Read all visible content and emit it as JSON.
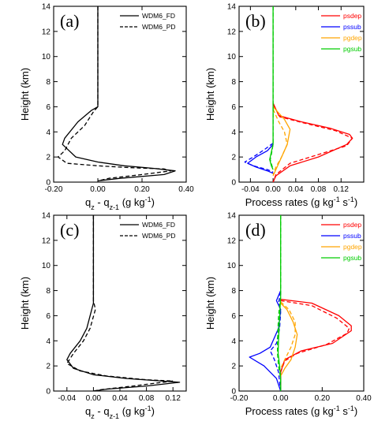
{
  "chart_data": [
    {
      "panel": "(a)",
      "type": "line",
      "xlabel_parts": {
        "base": "q",
        "sub1": "z",
        "minus": " - q",
        "sub2": "z-1",
        "unit": " (g kg",
        "sup": "-1",
        "close": ")"
      },
      "ylabel": "Height (km)",
      "xlim": [
        -0.2,
        0.4
      ],
      "ylim": [
        0,
        14
      ],
      "xticks": [
        -0.2,
        0.0,
        0.2,
        0.4
      ],
      "xtick_labels": [
        "-0.20",
        "0.00",
        "0.20",
        "0.40"
      ],
      "yticks": [
        0,
        2,
        4,
        6,
        8,
        10,
        12,
        14
      ],
      "legend_position": "top-right",
      "series": [
        {
          "name": "WDM6_FD",
          "color": "#000000",
          "dash": "solid",
          "points": [
            [
              0.0,
              14
            ],
            [
              0.0,
              6.0
            ],
            [
              -0.03,
              5.7
            ],
            [
              -0.09,
              4.8
            ],
            [
              -0.15,
              3.5
            ],
            [
              -0.16,
              3.0
            ],
            [
              -0.1,
              2.0
            ],
            [
              0.0,
              1.6
            ],
            [
              0.12,
              1.3
            ],
            [
              0.25,
              1.1
            ],
            [
              0.35,
              0.9
            ],
            [
              0.3,
              0.6
            ],
            [
              0.1,
              0.3
            ],
            [
              0.0,
              0.1
            ]
          ]
        },
        {
          "name": "WDM6_PD",
          "color": "#000000",
          "dash": "dashed",
          "points": [
            [
              0.0,
              14
            ],
            [
              0.0,
              6.0
            ],
            [
              -0.02,
              5.6
            ],
            [
              -0.06,
              4.5
            ],
            [
              -0.12,
              3.5
            ],
            [
              -0.15,
              2.5
            ],
            [
              -0.18,
              2.0
            ],
            [
              -0.14,
              1.5
            ],
            [
              0.0,
              1.3
            ],
            [
              0.15,
              1.15
            ],
            [
              0.3,
              1.05
            ],
            [
              0.33,
              0.9
            ],
            [
              0.2,
              0.6
            ],
            [
              0.05,
              0.3
            ],
            [
              0.0,
              0.1
            ]
          ]
        }
      ]
    },
    {
      "panel": "(b)",
      "type": "line",
      "xlabel_parts": {
        "base": "Process rates (g kg",
        "sup1": "-1",
        "mid": " s",
        "sup2": "-1",
        "close": ")"
      },
      "ylabel": "Height (km)",
      "xlim": [
        -0.06,
        0.16
      ],
      "ylim": [
        0,
        14
      ],
      "xticks": [
        -0.04,
        0.0,
        0.04,
        0.08,
        0.12
      ],
      "xtick_labels": [
        "-0.04",
        "0.00",
        "0.04",
        "0.08",
        "0.12"
      ],
      "yticks": [
        0,
        2,
        4,
        6,
        8,
        10,
        12,
        14
      ],
      "legend_position": "top-right",
      "series": [
        {
          "name": "psdep",
          "color": "#ff0000",
          "solid": [
            [
              0.0,
              6.3
            ],
            [
              0.01,
              5.3
            ],
            [
              0.05,
              4.8
            ],
            [
              0.1,
              4.3
            ],
            [
              0.135,
              3.8
            ],
            [
              0.14,
              3.5
            ],
            [
              0.13,
              3.0
            ],
            [
              0.08,
              2.0
            ],
            [
              0.03,
              1.3
            ],
            [
              0.005,
              0.5
            ],
            [
              0.0,
              0.0
            ]
          ],
          "dashed": [
            [
              0.0,
              6.2
            ],
            [
              0.012,
              5.2
            ],
            [
              0.055,
              4.7
            ],
            [
              0.11,
              4.1
            ],
            [
              0.14,
              3.5
            ],
            [
              0.13,
              2.9
            ],
            [
              0.08,
              2.2
            ],
            [
              0.03,
              1.5
            ],
            [
              0.005,
              0.6
            ],
            [
              0.0,
              0.0
            ]
          ]
        },
        {
          "name": "pssub",
          "color": "#0000ff",
          "solid": [
            [
              0.0,
              3.0
            ],
            [
              -0.01,
              2.5
            ],
            [
              -0.03,
              2.0
            ],
            [
              -0.045,
              1.5
            ],
            [
              -0.03,
              1.2
            ],
            [
              -0.01,
              0.9
            ],
            [
              0.0,
              0.7
            ]
          ],
          "dashed": [
            [
              0.0,
              3.1
            ],
            [
              -0.015,
              2.6
            ],
            [
              -0.035,
              2.0
            ],
            [
              -0.05,
              1.6
            ],
            [
              -0.035,
              1.3
            ],
            [
              -0.01,
              1.0
            ],
            [
              0.0,
              0.8
            ]
          ]
        },
        {
          "name": "pgdep",
          "color": "#ffa500",
          "solid": [
            [
              0.0,
              6.0
            ],
            [
              0.02,
              5.0
            ],
            [
              0.03,
              4.2
            ],
            [
              0.025,
              3.0
            ],
            [
              0.015,
              2.0
            ],
            [
              0.005,
              1.0
            ],
            [
              0.0,
              0.5
            ]
          ],
          "dashed": [
            [
              0.0,
              5.8
            ],
            [
              0.01,
              4.8
            ],
            [
              0.02,
              4.0
            ],
            [
              0.025,
              3.0
            ],
            [
              0.015,
              2.0
            ],
            [
              0.005,
              1.2
            ],
            [
              0.0,
              0.6
            ]
          ]
        },
        {
          "name": "pgsub",
          "color": "#00cc00",
          "solid": [
            [
              0.0,
              14
            ],
            [
              0.0,
              3.0
            ],
            [
              -0.004,
              2.2
            ],
            [
              -0.006,
              1.8
            ],
            [
              -0.003,
              1.3
            ],
            [
              0.0,
              1.0
            ]
          ],
          "dashed": [
            [
              0.0,
              14
            ],
            [
              0.0,
              3.0
            ],
            [
              -0.003,
              2.2
            ],
            [
              -0.005,
              1.8
            ],
            [
              -0.002,
              1.3
            ],
            [
              0.0,
              1.0
            ]
          ]
        }
      ]
    },
    {
      "panel": "(c)",
      "type": "line",
      "xlabel_parts": {
        "base": "q",
        "sub1": "z",
        "minus": " - q",
        "sub2": "z-1",
        "unit": " (g kg",
        "sup": "-1",
        "close": ")"
      },
      "ylabel": "Height (km)",
      "xlim": [
        -0.06,
        0.14
      ],
      "ylim": [
        0,
        14
      ],
      "xticks": [
        -0.04,
        0.0,
        0.04,
        0.08,
        0.12
      ],
      "xtick_labels": [
        "-0.04",
        "0.00",
        "0.04",
        "0.08",
        "0.12"
      ],
      "yticks": [
        0,
        2,
        4,
        6,
        8,
        10,
        12,
        14
      ],
      "legend_position": "top-right",
      "series": [
        {
          "name": "WDM6_FD",
          "color": "#000000",
          "dash": "solid",
          "points": [
            [
              0.0,
              14
            ],
            [
              0.0,
              7.0
            ],
            [
              -0.005,
              6.0
            ],
            [
              -0.01,
              5.0
            ],
            [
              -0.02,
              4.0
            ],
            [
              -0.035,
              3.0
            ],
            [
              -0.04,
              2.5
            ],
            [
              -0.03,
              1.8
            ],
            [
              0.0,
              1.3
            ],
            [
              0.05,
              1.0
            ],
            [
              0.13,
              0.7
            ],
            [
              0.08,
              0.4
            ],
            [
              0.02,
              0.15
            ],
            [
              0.0,
              0.0
            ]
          ]
        },
        {
          "name": "WDM6_PD",
          "color": "#000000",
          "dash": "dashed",
          "points": [
            [
              0.0,
              14
            ],
            [
              0.0,
              7.2
            ],
            [
              0.003,
              6.5
            ],
            [
              -0.005,
              5.0
            ],
            [
              -0.015,
              4.0
            ],
            [
              -0.03,
              3.0
            ],
            [
              -0.04,
              2.2
            ],
            [
              -0.02,
              1.6
            ],
            [
              0.02,
              1.2
            ],
            [
              0.08,
              0.9
            ],
            [
              0.12,
              0.8
            ],
            [
              0.06,
              0.4
            ],
            [
              0.01,
              0.1
            ],
            [
              0.0,
              0.0
            ]
          ]
        }
      ]
    },
    {
      "panel": "(d)",
      "type": "line",
      "xlabel_parts": {
        "base": "Process rates (g kg",
        "sup1": "-1",
        "mid": " s",
        "sup2": "-1",
        "close": ")"
      },
      "ylabel": "Height (km)",
      "xlim": [
        -0.2,
        0.4
      ],
      "ylim": [
        0,
        14
      ],
      "xticks": [
        -0.2,
        0.0,
        0.2,
        0.4
      ],
      "xtick_labels": [
        "-0.20",
        "0.00",
        "0.20",
        "0.40"
      ],
      "yticks": [
        0,
        2,
        4,
        6,
        8,
        10,
        12,
        14
      ],
      "legend_position": "top-right",
      "series": [
        {
          "name": "psdep",
          "color": "#ff0000",
          "solid": [
            [
              0.0,
              7.3
            ],
            [
              0.15,
              7.0
            ],
            [
              0.28,
              6.0
            ],
            [
              0.34,
              5.2
            ],
            [
              0.34,
              4.8
            ],
            [
              0.25,
              3.8
            ],
            [
              0.1,
              3.2
            ],
            [
              0.02,
              2.5
            ],
            [
              0.0,
              1.5
            ],
            [
              0.0,
              0.0
            ]
          ],
          "dashed": [
            [
              0.0,
              7.2
            ],
            [
              0.15,
              6.8
            ],
            [
              0.27,
              5.8
            ],
            [
              0.33,
              5.0
            ],
            [
              0.32,
              4.6
            ],
            [
              0.22,
              3.7
            ],
            [
              0.08,
              3.0
            ],
            [
              0.02,
              2.4
            ],
            [
              0.0,
              1.5
            ],
            [
              0.0,
              0.0
            ]
          ]
        },
        {
          "name": "pssub",
          "color": "#0000ff",
          "solid": [
            [
              0.0,
              8.0
            ],
            [
              -0.02,
              7.2
            ],
            [
              0.0,
              6.5
            ],
            [
              -0.01,
              5.0
            ],
            [
              -0.05,
              3.5
            ],
            [
              -0.1,
              3.0
            ],
            [
              -0.15,
              2.7
            ],
            [
              -0.08,
              2.0
            ],
            [
              -0.02,
              1.0
            ],
            [
              0.0,
              0.0
            ]
          ],
          "dashed": [
            [
              0.0,
              7.9
            ],
            [
              -0.01,
              7.0
            ],
            [
              0.0,
              6.3
            ],
            [
              -0.005,
              5.0
            ],
            [
              -0.02,
              3.8
            ],
            [
              -0.05,
              3.2
            ],
            [
              -0.03,
              2.5
            ],
            [
              -0.01,
              1.5
            ],
            [
              0.0,
              0.0
            ]
          ]
        },
        {
          "name": "pgdep",
          "color": "#ffa500",
          "solid": [
            [
              0.0,
              7.0
            ],
            [
              0.03,
              6.5
            ],
            [
              0.06,
              5.5
            ],
            [
              0.08,
              4.5
            ],
            [
              0.07,
              3.5
            ],
            [
              0.05,
              2.5
            ],
            [
              0.02,
              1.8
            ],
            [
              0.0,
              1.2
            ]
          ],
          "dashed": [
            [
              0.0,
              7.1
            ],
            [
              0.04,
              6.5
            ],
            [
              0.07,
              5.5
            ],
            [
              0.07,
              4.5
            ],
            [
              0.05,
              3.5
            ],
            [
              0.02,
              2.5
            ],
            [
              0.0,
              1.8
            ]
          ]
        },
        {
          "name": "pgsub",
          "color": "#00cc00",
          "solid": [
            [
              0.0,
              14
            ],
            [
              0.0,
              7.5
            ],
            [
              -0.005,
              6.0
            ],
            [
              -0.01,
              4.0
            ],
            [
              -0.012,
              3.0
            ],
            [
              -0.005,
              2.0
            ],
            [
              0.0,
              1.0
            ],
            [
              0.0,
              0.0
            ]
          ],
          "dashed": [
            [
              0.0,
              14
            ],
            [
              0.0,
              7.5
            ],
            [
              -0.01,
              6.0
            ],
            [
              -0.015,
              4.0
            ],
            [
              -0.015,
              3.0
            ],
            [
              -0.01,
              2.0
            ],
            [
              0.0,
              1.0
            ],
            [
              0.0,
              0.0
            ]
          ]
        }
      ]
    }
  ]
}
